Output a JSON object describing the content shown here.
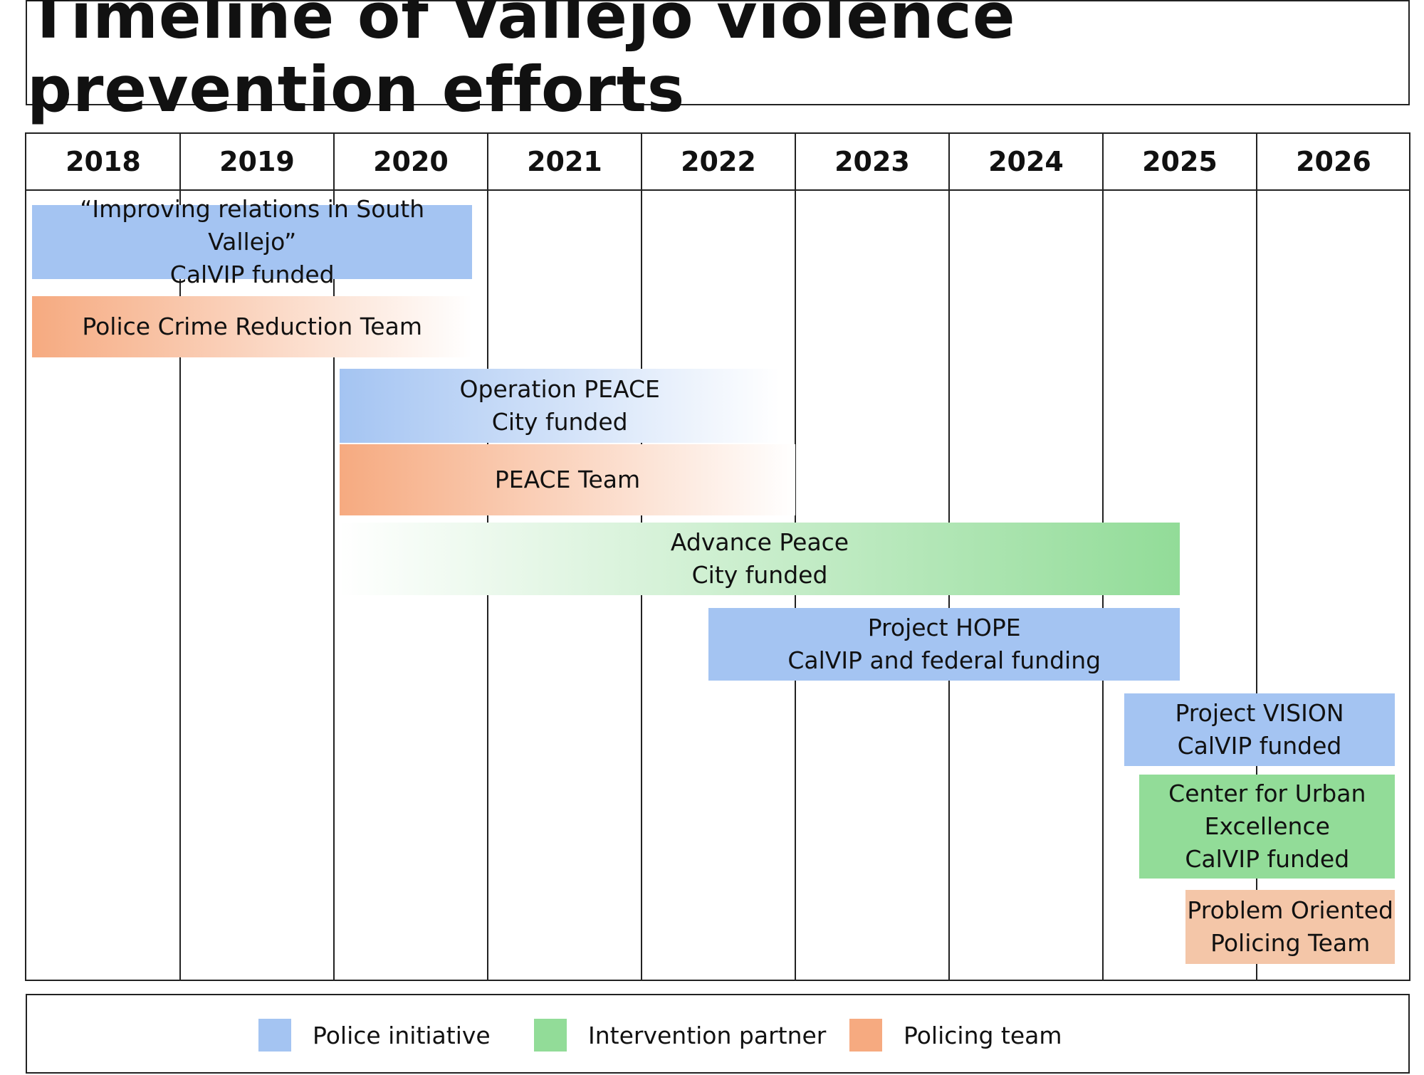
{
  "title": "Timeline of Vallejo violence prevention efforts",
  "years": [
    "2018",
    "2019",
    "2020",
    "2021",
    "2022",
    "2023",
    "2024",
    "2025",
    "2026"
  ],
  "colors": {
    "police_initiative": "#a4c4f2",
    "intervention_partner": "#92dc98",
    "policing_team": "#f6aa80",
    "policing_team_light": "#f4c6a8"
  },
  "items": [
    {
      "lines": [
        "“Improving relations in South Vallejo”",
        "CalVIP funded"
      ],
      "category": "police_initiative",
      "start_year": 2018,
      "end_year": 2020.9
    },
    {
      "lines": [
        "Police Crime Reduction Team"
      ],
      "category": "policing_team",
      "start_year": 2018,
      "end_year": 2020.9
    },
    {
      "lines": [
        "Operation PEACE",
        "City funded"
      ],
      "category": "police_initiative",
      "start_year": 2020,
      "end_year": 2022.9
    },
    {
      "lines": [
        "PEACE Team"
      ],
      "category": "policing_team",
      "start_year": 2020,
      "end_year": 2023
    },
    {
      "lines": [
        "Advance Peace",
        "City funded"
      ],
      "category": "intervention_partner",
      "start_year": 2020,
      "end_year": 2025.5
    },
    {
      "lines": [
        "Project HOPE",
        "CalVIP and federal funding"
      ],
      "category": "police_initiative",
      "start_year": 2022.4,
      "end_year": 2025.5
    },
    {
      "lines": [
        "Project VISION",
        "CalVIP funded"
      ],
      "category": "police_initiative",
      "start_year": 2025.1,
      "end_year": 2026.9
    },
    {
      "lines": [
        "Center for Urban",
        "Excellence",
        "CalVIP funded"
      ],
      "category": "intervention_partner",
      "start_year": 2025.2,
      "end_year": 2026.9
    },
    {
      "lines": [
        "Problem Oriented",
        "Policing Team"
      ],
      "category": "policing_team",
      "start_year": 2025.5,
      "end_year": 2026.9
    }
  ],
  "legend": [
    {
      "label": "Police initiative",
      "category": "police_initiative"
    },
    {
      "label": "Intervention partner",
      "category": "intervention_partner"
    },
    {
      "label": "Policing team",
      "category": "policing_team"
    }
  ]
}
